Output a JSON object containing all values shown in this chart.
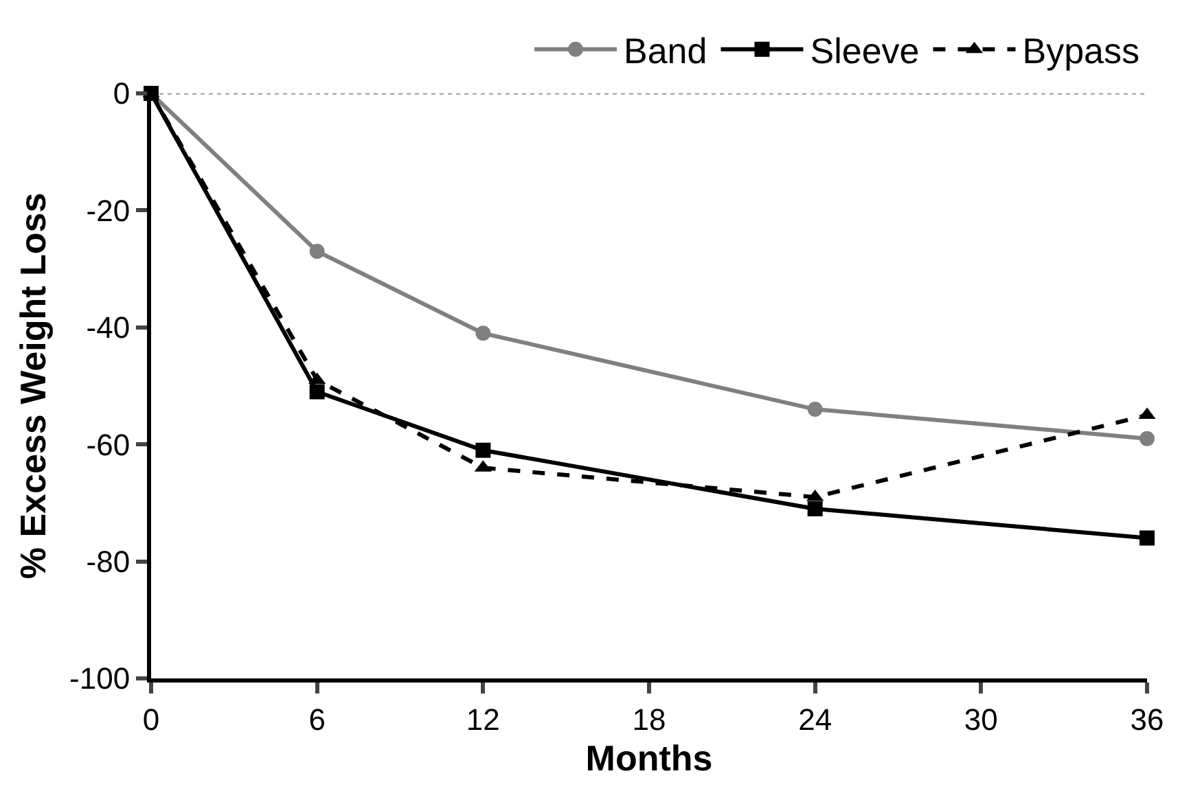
{
  "chart_data": {
    "type": "line",
    "xlabel": "Months",
    "ylabel": "% Excess Weight Loss",
    "x": [
      0,
      6,
      12,
      24,
      36
    ],
    "series": [
      {
        "name": "Band",
        "color": "#808080",
        "values": [
          0,
          -27,
          -41,
          -54,
          -59
        ],
        "marker": "circle",
        "line_style": "solid"
      },
      {
        "name": "Sleeve",
        "color": "#000000",
        "values": [
          0,
          -51,
          -61,
          -71,
          -76
        ],
        "marker": "square",
        "line_style": "solid"
      },
      {
        "name": "Bypass",
        "color": "#000000",
        "values": [
          0,
          -49,
          -64,
          -69,
          -55
        ],
        "marker": "triangle",
        "line_style": "dashed"
      }
    ],
    "xlim": [
      0,
      36
    ],
    "xticks": [
      0,
      6,
      12,
      18,
      24,
      30,
      36
    ],
    "ylim": [
      -100,
      0
    ],
    "yticks": [
      -100,
      -80,
      -60,
      -40,
      -20,
      0
    ],
    "ref_lines": [
      {
        "axis": "y",
        "value": 0,
        "color": "#808080",
        "line_style": "dotted"
      }
    ],
    "grid": false,
    "legend": "top"
  }
}
